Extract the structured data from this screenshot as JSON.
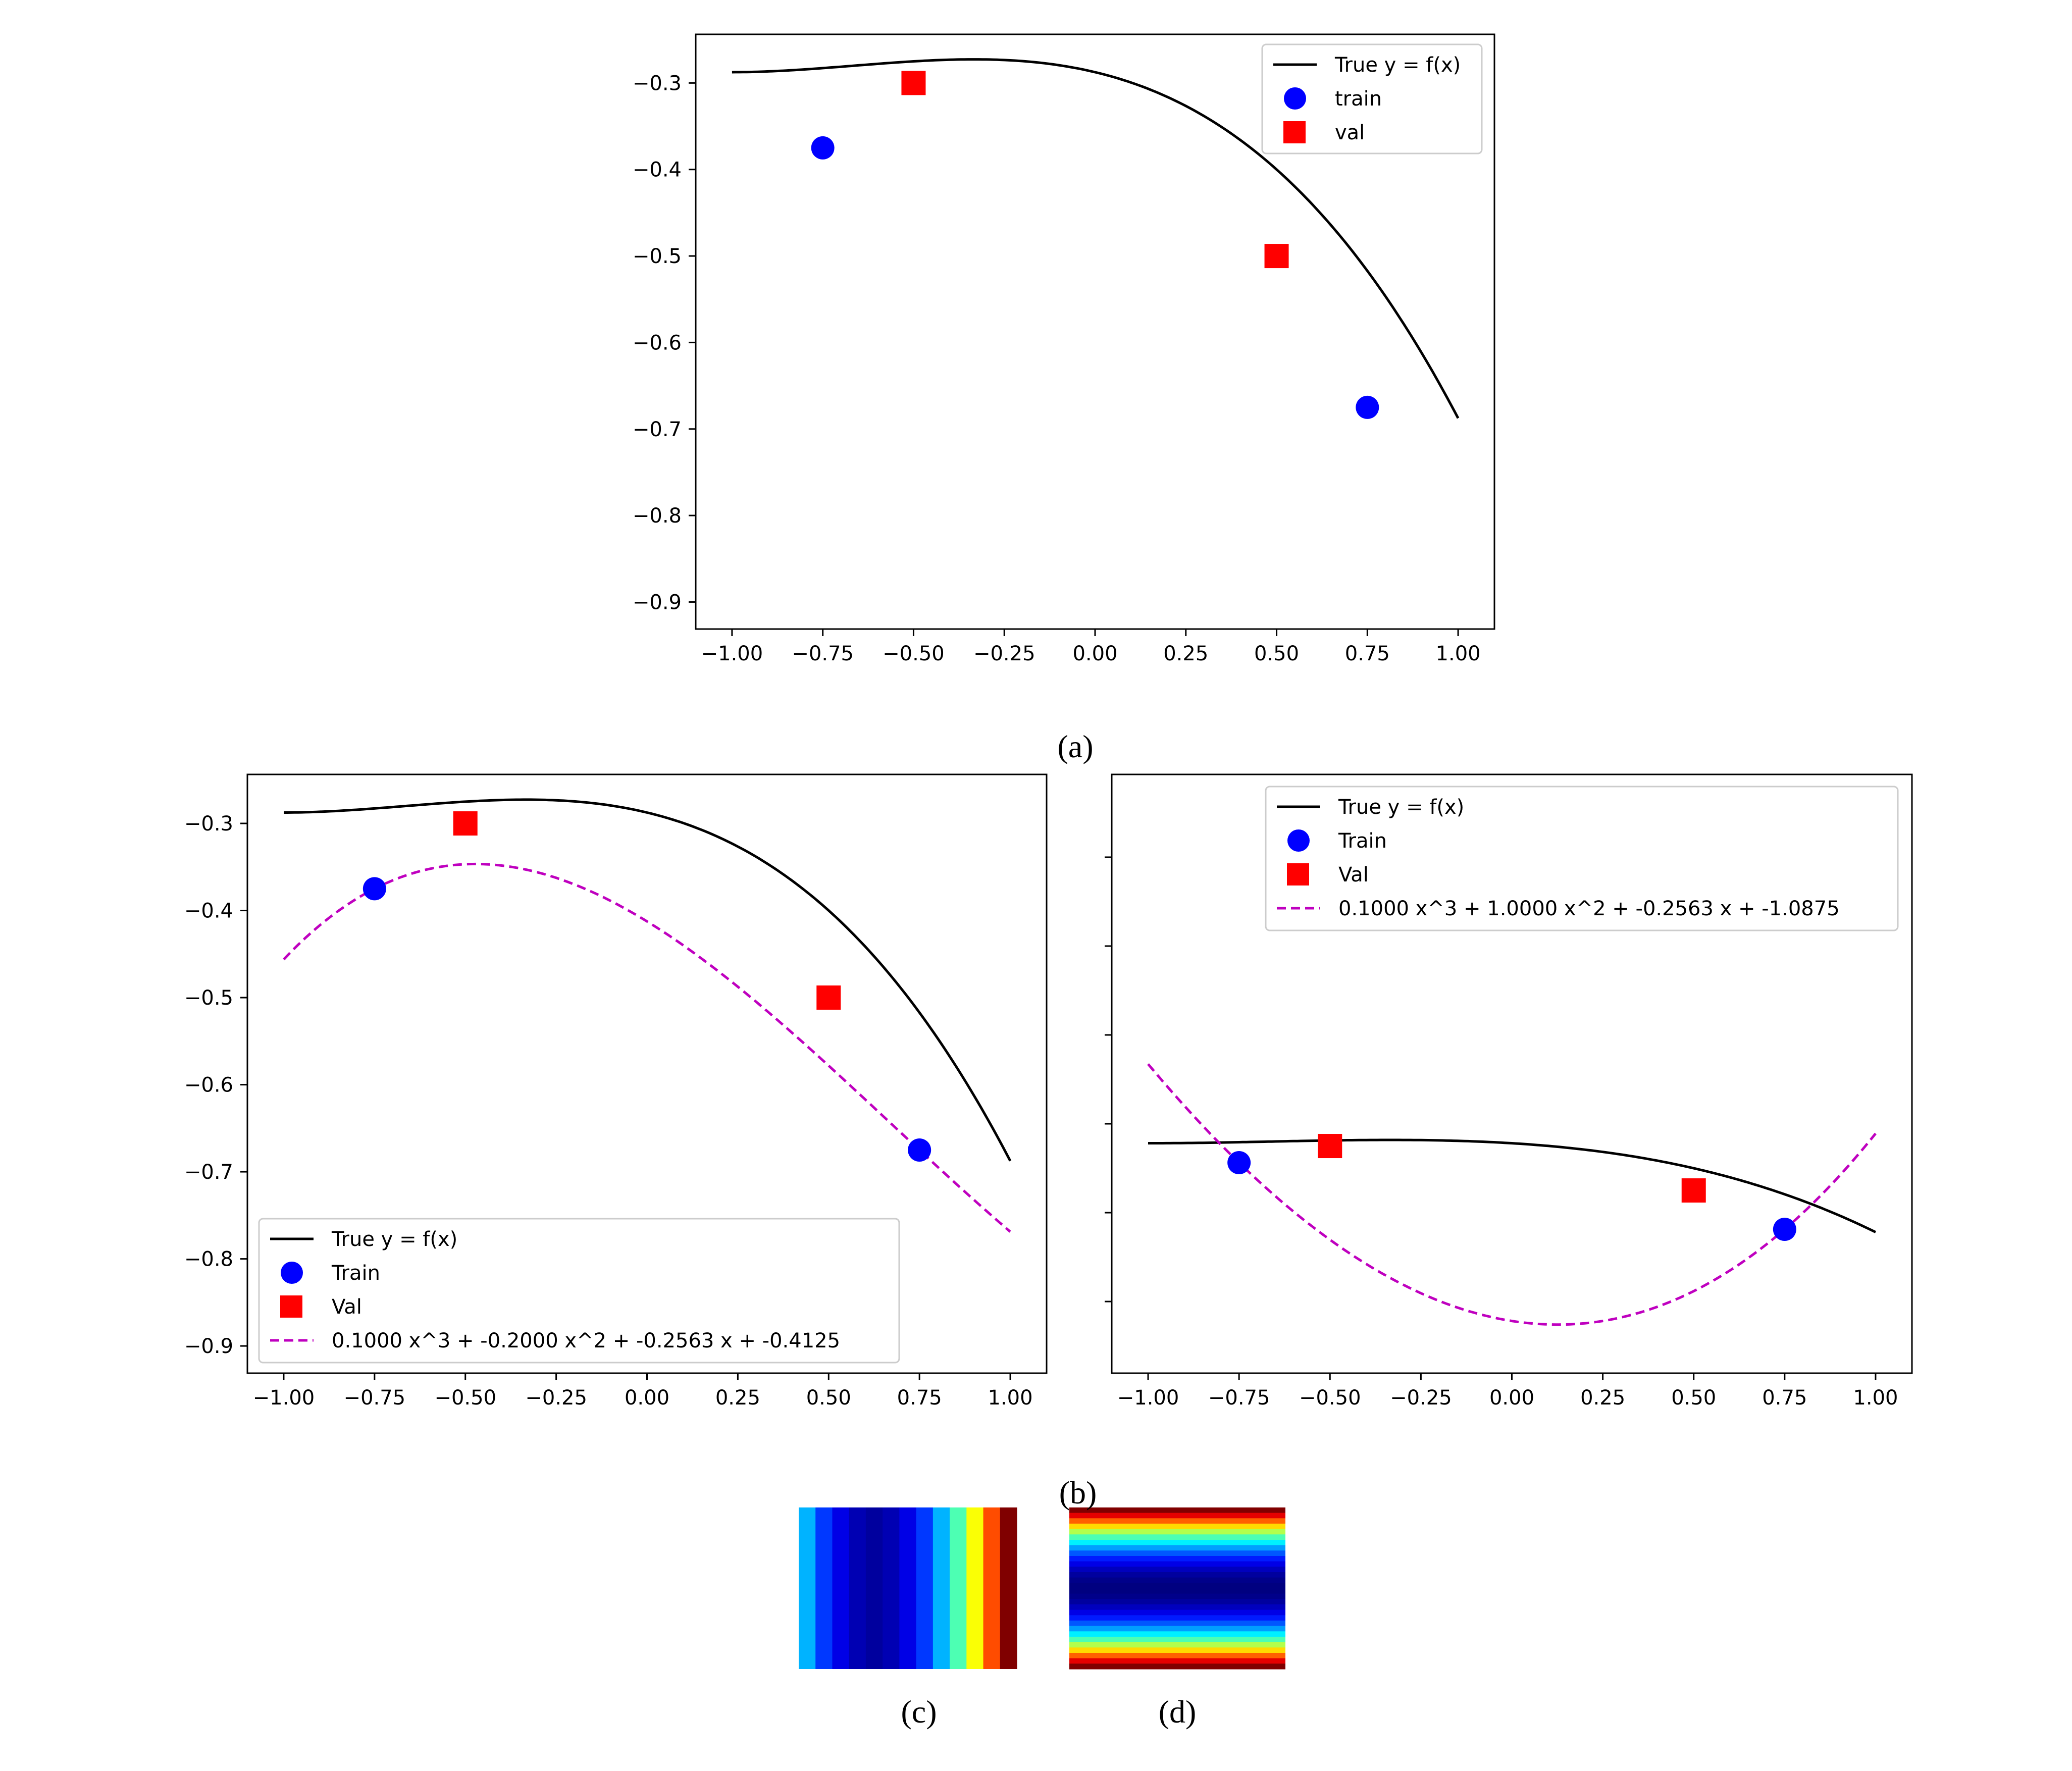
{
  "captions": {
    "a": "(a)",
    "b": "(b)",
    "c": "(c)",
    "d": "(d)"
  },
  "colors": {
    "true_curve": "#000000",
    "train": "#0000ff",
    "val": "#ff0000",
    "fit": "#bf00bf"
  },
  "chart_data": [
    {
      "id": "a",
      "type": "line",
      "xlim": [
        -1.0,
        1.0
      ],
      "ylim": [
        -0.9,
        -0.275
      ],
      "xticks": [
        "−1.00",
        "−0.75",
        "−0.50",
        "−0.25",
        "0.00",
        "0.25",
        "0.50",
        "0.75",
        "1.00"
      ],
      "xtick_values": [
        -1.0,
        -0.75,
        -0.5,
        -0.25,
        0.0,
        0.25,
        0.5,
        0.75,
        1.0
      ],
      "yticks": [
        "−0.3",
        "−0.4",
        "−0.5",
        "−0.6",
        "−0.7",
        "−0.8",
        "−0.9"
      ],
      "ytick_values": [
        -0.3,
        -0.4,
        -0.5,
        -0.6,
        -0.7,
        -0.8,
        -0.9
      ],
      "legend_location": "upper right",
      "legend": [
        "True y = f(x)",
        "train",
        "val"
      ],
      "true_curve": {
        "name": "True y = f(x)",
        "formula": "-0.2x^2 - 0.1x - 0.2875 - 0.1x^3",
        "coeffs": [
          -0.1,
          -0.2,
          -0.1,
          -0.2875
        ]
      },
      "train": {
        "name": "train",
        "x": [
          -0.75,
          0.75
        ],
        "y": [
          -0.375,
          -0.675
        ]
      },
      "val": {
        "name": "val",
        "x": [
          -0.5,
          0.5
        ],
        "y": [
          -0.3,
          -0.5
        ]
      },
      "fit": null
    },
    {
      "id": "b-left",
      "type": "line",
      "xlim": [
        -1.0,
        1.0
      ],
      "ylim": [
        -0.9,
        -0.275
      ],
      "xticks": [
        "−1.00",
        "−0.75",
        "−0.50",
        "−0.25",
        "0.00",
        "0.25",
        "0.50",
        "0.75",
        "1.00"
      ],
      "xtick_values": [
        -1.0,
        -0.75,
        -0.5,
        -0.25,
        0.0,
        0.25,
        0.5,
        0.75,
        1.0
      ],
      "yticks": [
        "−0.3",
        "−0.4",
        "−0.5",
        "−0.6",
        "−0.7",
        "−0.8",
        "−0.9"
      ],
      "ytick_values": [
        -0.3,
        -0.4,
        -0.5,
        -0.6,
        -0.7,
        -0.8,
        -0.9
      ],
      "legend_location": "lower left",
      "legend": [
        "True y = f(x)",
        "Train",
        "Val",
        "0.1000 x^3 + -0.2000 x^2 + -0.2563 x + -0.4125"
      ],
      "true_curve": {
        "name": "True y = f(x)",
        "coeffs": [
          -0.1,
          -0.2,
          -0.1,
          -0.2875
        ]
      },
      "train": {
        "name": "Train",
        "x": [
          -0.75,
          0.75
        ],
        "y": [
          -0.375,
          -0.675
        ]
      },
      "val": {
        "name": "Val",
        "x": [
          -0.5,
          0.5
        ],
        "y": [
          -0.3,
          -0.5
        ]
      },
      "fit": {
        "name": "0.1000 x^3 + -0.2000 x^2 + -0.2563 x + -0.4125",
        "coeffs": [
          0.1,
          -0.2,
          -0.2563,
          -0.4125
        ]
      }
    },
    {
      "id": "b-right",
      "type": "line",
      "xlim": [
        -1.0,
        1.0
      ],
      "ylim": [
        -1.2,
        1.25
      ],
      "xticks": [
        "−1.00",
        "−0.75",
        "−0.50",
        "−0.25",
        "0.00",
        "0.25",
        "0.50",
        "0.75",
        "1.00"
      ],
      "xtick_values": [
        -1.0,
        -0.75,
        -0.5,
        -0.25,
        0.0,
        0.25,
        0.5,
        0.75,
        1.0
      ],
      "yticks": [
        "",
        "",
        "",
        "",
        "",
        "",
        ""
      ],
      "ytick_values": [
        1.0,
        0.6,
        0.2,
        -0.2,
        -0.6,
        -1.0,
        -1.4
      ],
      "legend_location": "upper center",
      "legend": [
        "True y = f(x)",
        "Train",
        "Val",
        "0.1000 x^3 + 1.0000 x^2 + -0.2563 x + -1.0875"
      ],
      "true_curve": {
        "name": "True y = f(x)",
        "coeffs": [
          -0.1,
          -0.2,
          -0.1,
          -0.2875
        ]
      },
      "train": {
        "name": "Train",
        "x": [
          -0.75,
          0.75
        ],
        "y": [
          -0.375,
          -0.675
        ]
      },
      "val": {
        "name": "Val",
        "x": [
          -0.5,
          0.5
        ],
        "y": [
          -0.3,
          -0.5
        ]
      },
      "fit": {
        "name": "0.1000 x^3 + 1.0000 x^2 + -0.2563 x + -1.0875",
        "coeffs": [
          0.1,
          1.0,
          -0.2563,
          -1.0875
        ]
      }
    },
    {
      "id": "c",
      "type": "heatmap",
      "orientation": "columns",
      "colormap": "jet",
      "values": [
        0.3,
        0.18,
        0.1,
        0.05,
        0.03,
        0.05,
        0.1,
        0.18,
        0.3,
        0.45,
        0.62,
        0.8,
        1.0
      ]
    },
    {
      "id": "d",
      "type": "heatmap",
      "orientation": "rows",
      "colormap": "jet",
      "values": [
        1.0,
        0.9,
        0.78,
        0.66,
        0.55,
        0.45,
        0.36,
        0.28,
        0.21,
        0.15,
        0.1,
        0.06,
        0.03,
        0.01,
        0.0,
        0.0,
        0.01,
        0.03,
        0.06,
        0.1,
        0.15,
        0.21,
        0.28,
        0.36,
        0.45,
        0.55,
        0.66,
        0.78,
        0.9,
        1.0
      ]
    }
  ]
}
